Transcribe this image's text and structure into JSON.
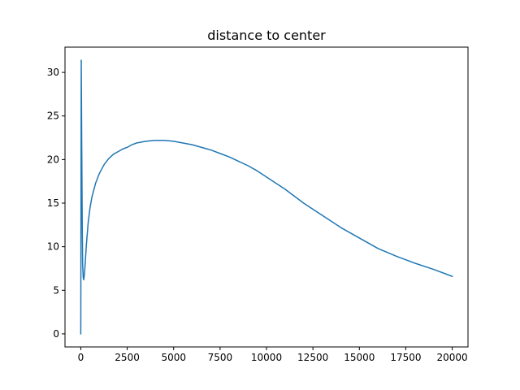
{
  "chart_data": {
    "type": "line",
    "title": "distance to center",
    "xlabel": "",
    "ylabel": "",
    "xlim": [
      -850,
      20850
    ],
    "ylim": [
      -1.5,
      32.9
    ],
    "xticks": [
      0,
      2500,
      5000,
      7500,
      10000,
      12500,
      15000,
      17500,
      20000
    ],
    "xtick_labels": [
      "0",
      "2500",
      "5000",
      "7500",
      "10000",
      "12500",
      "15000",
      "17500",
      "20000"
    ],
    "yticks": [
      0,
      5,
      10,
      15,
      20,
      25,
      30
    ],
    "ytick_labels": [
      "0",
      "5",
      "10",
      "15",
      "20",
      "25",
      "30"
    ],
    "grid": false,
    "series": [
      {
        "color": "#1f77b4",
        "x": [
          0,
          25,
          50,
          80,
          100,
          130,
          160,
          200,
          250,
          300,
          400,
          500,
          600,
          800,
          1000,
          1250,
          1500,
          1750,
          2000,
          2250,
          2500,
          2750,
          3000,
          3500,
          4000,
          4500,
          5000,
          5500,
          6000,
          6500,
          7000,
          7500,
          8000,
          8500,
          9000,
          9500,
          10000,
          11000,
          12000,
          13000,
          14000,
          15000,
          16000,
          17000,
          18000,
          19000,
          20000
        ],
        "values": [
          0,
          31.4,
          22,
          12,
          8,
          6.5,
          6.2,
          6.9,
          8.5,
          10.2,
          12.8,
          14.5,
          15.7,
          17.3,
          18.4,
          19.4,
          20.1,
          20.6,
          20.9,
          21.2,
          21.4,
          21.7,
          21.9,
          22.1,
          22.2,
          22.2,
          22.1,
          21.9,
          21.7,
          21.4,
          21.1,
          20.7,
          20.3,
          19.8,
          19.3,
          18.7,
          18.0,
          16.6,
          15.0,
          13.6,
          12.2,
          11.0,
          9.8,
          8.9,
          8.1,
          7.4,
          6.6
        ]
      }
    ]
  }
}
